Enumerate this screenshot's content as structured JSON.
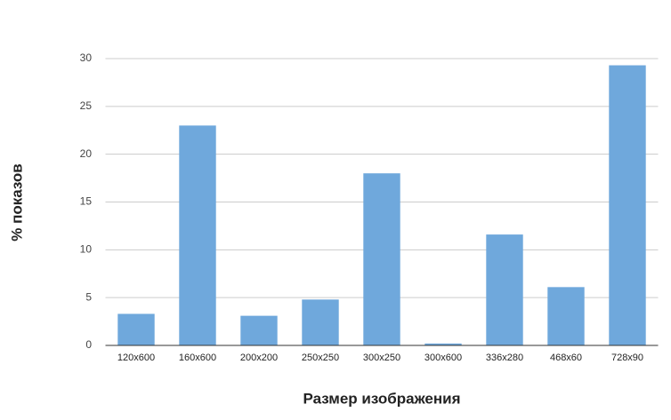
{
  "chart_data": {
    "type": "bar",
    "x_label": "Размер изображения",
    "y_label": "% показов",
    "categories": [
      "120x600",
      "160x600",
      "200x200",
      "250x250",
      "300x250",
      "300x600",
      "336x280",
      "468x60",
      "728x90"
    ],
    "values": [
      3.3,
      23,
      3.1,
      4.8,
      18,
      0.2,
      11.6,
      6.1,
      29.3
    ],
    "color": "#6fa8dc",
    "ylim": [
      0,
      30
    ],
    "yticks": [
      0,
      5,
      10,
      15,
      20,
      25,
      30
    ],
    "grid": true
  }
}
